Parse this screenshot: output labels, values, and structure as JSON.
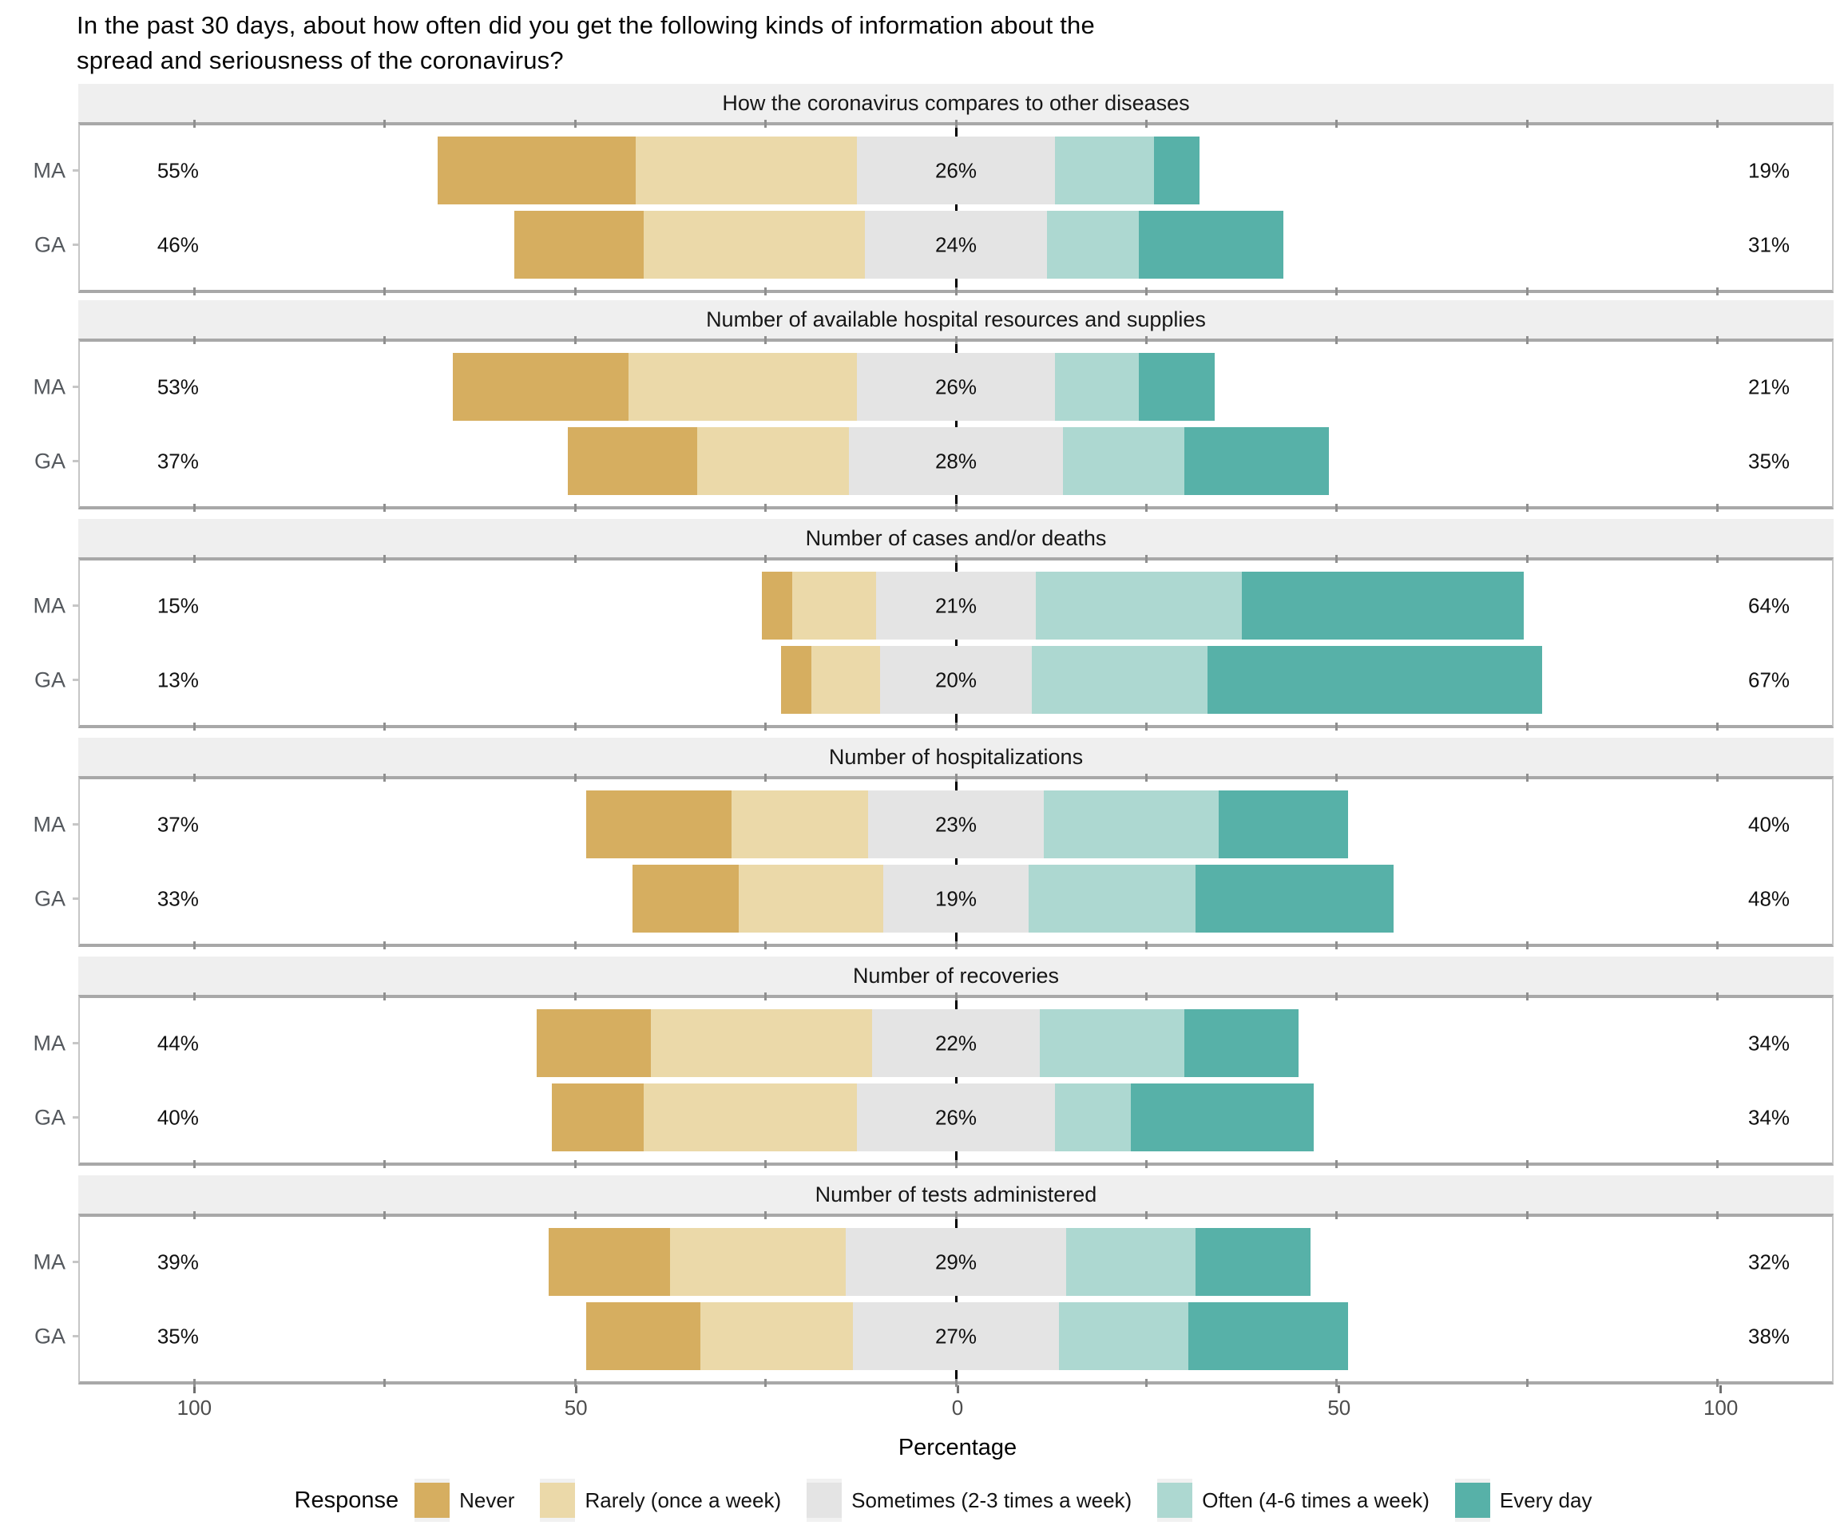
{
  "title_lines": [
    "In the past 30 days, about how often did you get the following kinds of information about the",
    "spread and seriousness of the coronavirus?"
  ],
  "x_axis": {
    "label": "Percentage",
    "tick_labels": [
      "100",
      "50",
      "0",
      "50",
      "100"
    ],
    "tick_values": [
      -100,
      -50,
      0,
      50,
      100
    ],
    "minor_tick_step": 25,
    "xlim": [
      -115,
      115
    ]
  },
  "legend": {
    "title": "Response",
    "items": [
      {
        "label": "Never",
        "color": "#D6AE60"
      },
      {
        "label": "Rarely (once a week)",
        "color": "#EBD9A9"
      },
      {
        "label": "Sometimes (2-3 times a week)",
        "color": "#E4E4E4"
      },
      {
        "label": "Often (4-6 times a week)",
        "color": "#ADD8D1"
      },
      {
        "label": "Every day",
        "color": "#57B1A8"
      }
    ]
  },
  "chart_data": {
    "type": "bar",
    "subtype": "diverging-stacked-likert",
    "center_category": "Sometimes (2-3 times a week)",
    "categories": [
      "Never",
      "Rarely (once a week)",
      "Sometimes (2-3 times a week)",
      "Often (4-6 times a week)",
      "Every day"
    ],
    "colors": [
      "#D6AE60",
      "#EBD9A9",
      "#E4E4E4",
      "#ADD8D1",
      "#57B1A8"
    ],
    "groups": [
      "MA",
      "GA"
    ],
    "panels": [
      {
        "title": "How the coronavirus compares to other diseases",
        "rows": [
          {
            "group": "MA",
            "segments": [
              26,
              29,
              26,
              13,
              6
            ],
            "label_left": "55%",
            "label_mid": "26%",
            "label_right": "19%"
          },
          {
            "group": "GA",
            "segments": [
              17,
              29,
              24,
              12,
              19
            ],
            "label_left": "46%",
            "label_mid": "24%",
            "label_right": "31%"
          }
        ]
      },
      {
        "title": "Number of available hospital resources and supplies",
        "rows": [
          {
            "group": "MA",
            "segments": [
              23,
              30,
              26,
              11,
              10
            ],
            "label_left": "53%",
            "label_mid": "26%",
            "label_right": "21%"
          },
          {
            "group": "GA",
            "segments": [
              17,
              20,
              28,
              16,
              19
            ],
            "label_left": "37%",
            "label_mid": "28%",
            "label_right": "35%"
          }
        ]
      },
      {
        "title": "Number of cases and/or deaths",
        "rows": [
          {
            "group": "MA",
            "segments": [
              4,
              11,
              21,
              27,
              37
            ],
            "label_left": "15%",
            "label_mid": "21%",
            "label_right": "64%"
          },
          {
            "group": "GA",
            "segments": [
              4,
              9,
              20,
              23,
              44
            ],
            "label_left": "13%",
            "label_mid": "20%",
            "label_right": "67%"
          }
        ]
      },
      {
        "title": "Number of hospitalizations",
        "rows": [
          {
            "group": "MA",
            "segments": [
              19,
              18,
              23,
              23,
              17
            ],
            "label_left": "37%",
            "label_mid": "23%",
            "label_right": "40%"
          },
          {
            "group": "GA",
            "segments": [
              14,
              19,
              19,
              22,
              26
            ],
            "label_left": "33%",
            "label_mid": "19%",
            "label_right": "48%"
          }
        ]
      },
      {
        "title": "Number of recoveries",
        "rows": [
          {
            "group": "MA",
            "segments": [
              15,
              29,
              22,
              19,
              15
            ],
            "label_left": "44%",
            "label_mid": "22%",
            "label_right": "34%"
          },
          {
            "group": "GA",
            "segments": [
              12,
              28,
              26,
              10,
              24
            ],
            "label_left": "40%",
            "label_mid": "26%",
            "label_right": "34%"
          }
        ]
      },
      {
        "title": "Number of tests administered",
        "rows": [
          {
            "group": "MA",
            "segments": [
              16,
              23,
              29,
              17,
              15
            ],
            "label_left": "39%",
            "label_mid": "29%",
            "label_right": "32%"
          },
          {
            "group": "GA",
            "segments": [
              15,
              20,
              27,
              17,
              21
            ],
            "label_left": "35%",
            "label_mid": "27%",
            "label_right": "38%"
          }
        ]
      }
    ]
  }
}
